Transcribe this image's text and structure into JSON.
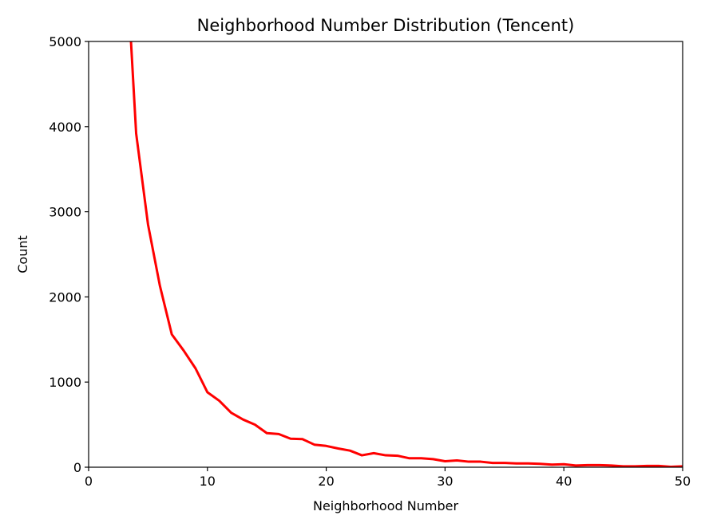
{
  "chart_data": {
    "type": "line",
    "title": "Neighborhood Number Distribution (Tencent)",
    "xlabel": "Neighborhood Number",
    "ylabel": "Count",
    "xlim": [
      0,
      50
    ],
    "ylim": [
      0,
      5000
    ],
    "xticks": [
      0,
      10,
      20,
      30,
      40,
      50
    ],
    "yticks": [
      0,
      1000,
      2000,
      3000,
      4000,
      5000
    ],
    "xtick_labels": [
      "0",
      "10",
      "20",
      "30",
      "40",
      "50"
    ],
    "ytick_labels": [
      "0",
      "1000",
      "2000",
      "3000",
      "4000",
      "5000"
    ],
    "grid": false,
    "series": [
      {
        "color": "#ff0000",
        "x": [
          3,
          4,
          5,
          6,
          7,
          8,
          9,
          10,
          11,
          12,
          13,
          14,
          15,
          16,
          17,
          18,
          19,
          20,
          21,
          22,
          23,
          24,
          25,
          26,
          27,
          28,
          29,
          30,
          31,
          32,
          33,
          34,
          35,
          36,
          37,
          38,
          39,
          40,
          41,
          42,
          43,
          44,
          45,
          46,
          47,
          48,
          49,
          50
        ],
        "y": [
          6400,
          3920,
          2850,
          2130,
          1560,
          1370,
          1160,
          880,
          780,
          640,
          560,
          500,
          400,
          390,
          335,
          330,
          265,
          250,
          220,
          195,
          140,
          165,
          140,
          135,
          105,
          105,
          95,
          70,
          80,
          65,
          65,
          50,
          50,
          45,
          45,
          40,
          30,
          35,
          20,
          25,
          25,
          20,
          10,
          10,
          15,
          15,
          5,
          10
        ]
      }
    ]
  }
}
